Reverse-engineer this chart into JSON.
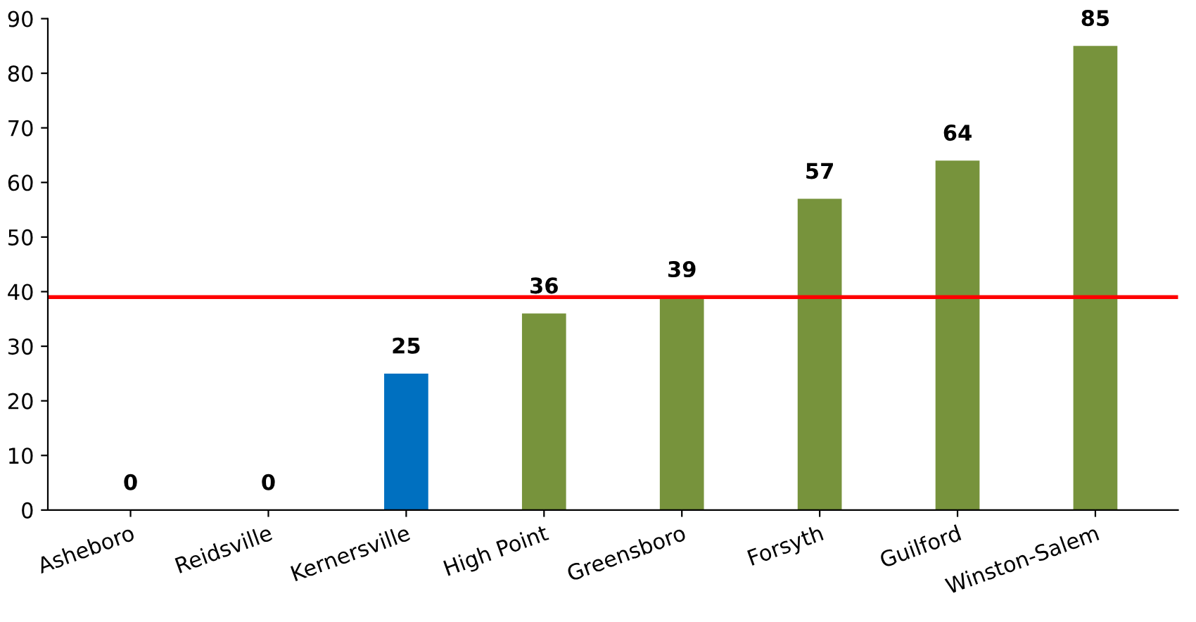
{
  "chart_data": {
    "type": "bar",
    "categories": [
      "Asheboro",
      "Reidsville",
      "Kernersville",
      "High Point",
      "Greensboro",
      "Forsyth",
      "Guilford",
      "Winston-Salem"
    ],
    "values": [
      0,
      0,
      25,
      36,
      39,
      57,
      64,
      85
    ],
    "colors": [
      "#77933c",
      "#77933c",
      "#0070c0",
      "#77933c",
      "#77933c",
      "#77933c",
      "#77933c",
      "#77933c"
    ],
    "ylim": [
      0,
      90
    ],
    "yticks": [
      0,
      10,
      20,
      30,
      40,
      50,
      60,
      70,
      80,
      90
    ],
    "grid": false,
    "data_labels": true,
    "ref_lines": [
      {
        "axis": "y",
        "value": 39,
        "color": "#ff0000",
        "line_style": "solid"
      }
    ]
  }
}
